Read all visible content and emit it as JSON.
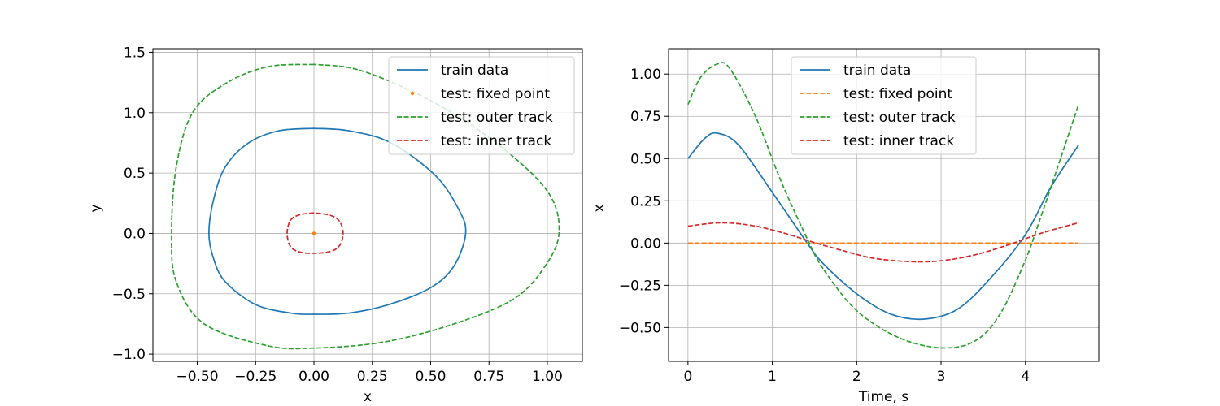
{
  "chart_data": [
    {
      "type": "line",
      "xlabel": "x",
      "ylabel": "y",
      "xlim": [
        -0.69,
        1.15
      ],
      "ylim": [
        -1.06,
        1.53
      ],
      "xticks": [
        -0.5,
        -0.25,
        0.0,
        0.25,
        0.5,
        0.75,
        1.0
      ],
      "xtick_labels": [
        "−0.50",
        "−0.25",
        "0.00",
        "0.25",
        "0.50",
        "0.75",
        "1.00"
      ],
      "yticks": [
        -1.0,
        -0.5,
        0.0,
        0.5,
        1.0,
        1.5
      ],
      "ytick_labels": [
        "−1.0",
        "−0.5",
        "0.0",
        "0.5",
        "1.0",
        "1.5"
      ],
      "grid": true,
      "legend": "top-right",
      "series": [
        {
          "name": "train data",
          "color": "#1f77b4",
          "style": "solid",
          "points": [
            [
              0.0,
              0.87
            ],
            [
              -0.15,
              0.85
            ],
            [
              -0.28,
              0.75
            ],
            [
              -0.38,
              0.55
            ],
            [
              -0.43,
              0.28
            ],
            [
              -0.45,
              0.0
            ],
            [
              -0.43,
              -0.21
            ],
            [
              -0.38,
              -0.4
            ],
            [
              -0.25,
              -0.59
            ],
            [
              -0.1,
              -0.66
            ],
            [
              0.0,
              -0.67
            ],
            [
              0.15,
              -0.66
            ],
            [
              0.32,
              -0.59
            ],
            [
              0.5,
              -0.45
            ],
            [
              0.6,
              -0.27
            ],
            [
              0.65,
              0.0
            ],
            [
              0.62,
              0.2
            ],
            [
              0.52,
              0.48
            ],
            [
              0.33,
              0.75
            ],
            [
              0.15,
              0.85
            ],
            [
              0.0,
              0.87
            ]
          ]
        },
        {
          "name": "test: fixed point",
          "color": "#ff7f0e",
          "style": "marker",
          "points": [
            [
              0.0,
              0.0
            ]
          ]
        },
        {
          "name": "test: outer track",
          "color": "#2ca02c",
          "style": "dashed",
          "points": [
            [
              0.0,
              1.4
            ],
            [
              -0.2,
              1.38
            ],
            [
              -0.38,
              1.24
            ],
            [
              -0.52,
              1.0
            ],
            [
              -0.59,
              0.55
            ],
            [
              -0.61,
              0.0
            ],
            [
              -0.59,
              -0.4
            ],
            [
              -0.47,
              -0.75
            ],
            [
              -0.2,
              -0.93
            ],
            [
              0.0,
              -0.95
            ],
            [
              0.3,
              -0.9
            ],
            [
              0.6,
              -0.75
            ],
            [
              0.85,
              -0.55
            ],
            [
              0.98,
              -0.3
            ],
            [
              1.05,
              0.0
            ],
            [
              1.0,
              0.35
            ],
            [
              0.78,
              0.75
            ],
            [
              0.5,
              1.1
            ],
            [
              0.2,
              1.35
            ],
            [
              0.0,
              1.4
            ]
          ]
        },
        {
          "name": "test: inner track",
          "color": "#d62728",
          "style": "dashed",
          "points": [
            [
              0.0,
              0.17
            ],
            [
              -0.06,
              0.155
            ],
            [
              -0.1,
              0.11
            ],
            [
              -0.115,
              0.0
            ],
            [
              -0.1,
              -0.11
            ],
            [
              -0.06,
              -0.155
            ],
            [
              0.0,
              -0.165
            ],
            [
              0.07,
              -0.15
            ],
            [
              0.11,
              -0.1
            ],
            [
              0.125,
              0.0
            ],
            [
              0.11,
              0.1
            ],
            [
              0.07,
              0.15
            ],
            [
              0.0,
              0.17
            ]
          ]
        }
      ]
    },
    {
      "type": "line",
      "xlabel": "Time, s",
      "ylabel": "x",
      "xlim": [
        -0.23,
        4.87
      ],
      "ylim": [
        -0.7,
        1.15
      ],
      "xticks": [
        0,
        1,
        2,
        3,
        4
      ],
      "xtick_labels": [
        "0",
        "1",
        "2",
        "3",
        "4"
      ],
      "yticks": [
        -0.5,
        -0.25,
        0.0,
        0.25,
        0.5,
        0.75,
        1.0
      ],
      "ytick_labels": [
        "−0.50",
        "−0.25",
        "0.00",
        "0.25",
        "0.50",
        "0.75",
        "1.00"
      ],
      "grid": true,
      "legend": "top-center",
      "series": [
        {
          "name": "train data",
          "color": "#1f77b4",
          "style": "solid",
          "points": [
            [
              0.0,
              0.5
            ],
            [
              0.2,
              0.62
            ],
            [
              0.35,
              0.65
            ],
            [
              0.6,
              0.58
            ],
            [
              1.0,
              0.3
            ],
            [
              1.4,
              0.01
            ],
            [
              1.6,
              -0.12
            ],
            [
              2.0,
              -0.3
            ],
            [
              2.4,
              -0.42
            ],
            [
              2.8,
              -0.45
            ],
            [
              3.2,
              -0.39
            ],
            [
              3.6,
              -0.2
            ],
            [
              4.0,
              0.05
            ],
            [
              4.3,
              0.33
            ],
            [
              4.63,
              0.58
            ]
          ]
        },
        {
          "name": "test: fixed point",
          "color": "#ff7f0e",
          "style": "dashed",
          "points": [
            [
              0.0,
              0.0
            ],
            [
              4.63,
              0.0
            ]
          ]
        },
        {
          "name": "test: outer track",
          "color": "#2ca02c",
          "style": "dashed",
          "points": [
            [
              0.0,
              0.82
            ],
            [
              0.15,
              0.98
            ],
            [
              0.35,
              1.06
            ],
            [
              0.5,
              1.03
            ],
            [
              0.8,
              0.75
            ],
            [
              1.1,
              0.37
            ],
            [
              1.4,
              0.04
            ],
            [
              1.6,
              -0.15
            ],
            [
              2.0,
              -0.4
            ],
            [
              2.5,
              -0.56
            ],
            [
              3.0,
              -0.62
            ],
            [
              3.4,
              -0.58
            ],
            [
              3.7,
              -0.42
            ],
            [
              4.0,
              -0.1
            ],
            [
              4.2,
              0.18
            ],
            [
              4.45,
              0.55
            ],
            [
              4.63,
              0.82
            ]
          ]
        },
        {
          "name": "test: inner track",
          "color": "#d62728",
          "style": "dashed",
          "points": [
            [
              0.0,
              0.1
            ],
            [
              0.4,
              0.12
            ],
            [
              0.8,
              0.1
            ],
            [
              1.2,
              0.05
            ],
            [
              1.45,
              0.01
            ],
            [
              1.8,
              -0.04
            ],
            [
              2.2,
              -0.09
            ],
            [
              2.65,
              -0.11
            ],
            [
              3.0,
              -0.105
            ],
            [
              3.4,
              -0.07
            ],
            [
              3.8,
              -0.01
            ],
            [
              4.2,
              0.06
            ],
            [
              4.63,
              0.12
            ]
          ]
        }
      ]
    }
  ]
}
